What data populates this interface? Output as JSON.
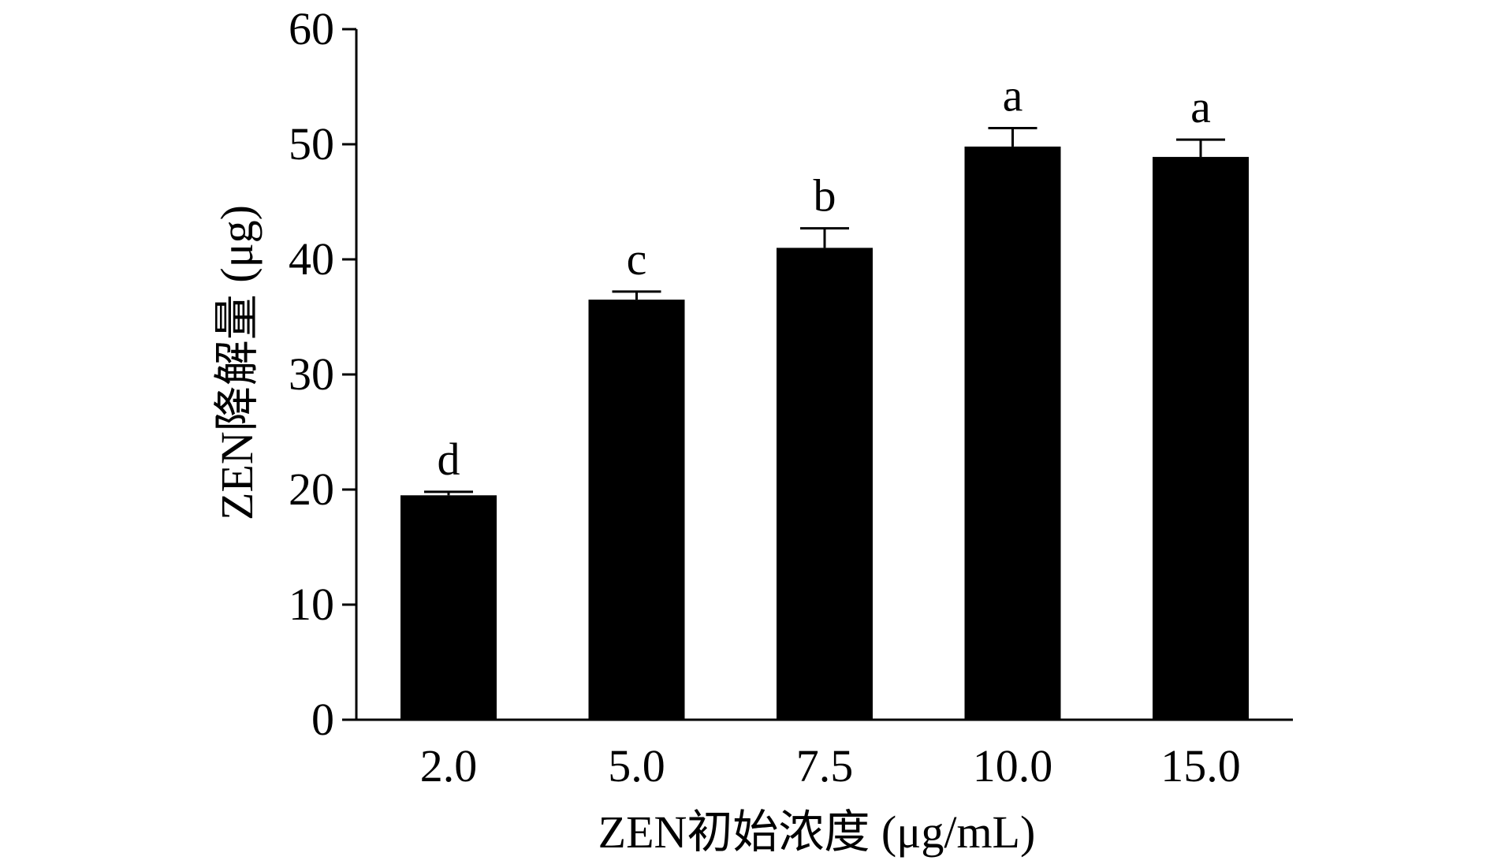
{
  "chart_data": {
    "type": "bar",
    "xlabel": "ZEN初始浓度 (μg/mL)",
    "ylabel": "ZEN降解量 (μg)",
    "categories": [
      "2.0",
      "5.0",
      "7.5",
      "10.0",
      "15.0"
    ],
    "values": [
      19.5,
      36.5,
      41.0,
      49.8,
      48.9
    ],
    "errors": [
      0.3,
      0.7,
      1.7,
      1.6,
      1.5
    ],
    "significance": [
      "d",
      "c",
      "b",
      "a",
      "a"
    ],
    "ylim": [
      0,
      60
    ],
    "yticks": [
      "0",
      "10",
      "20",
      "30",
      "40",
      "50",
      "60"
    ],
    "grid": false,
    "bar_color": "#000000"
  }
}
